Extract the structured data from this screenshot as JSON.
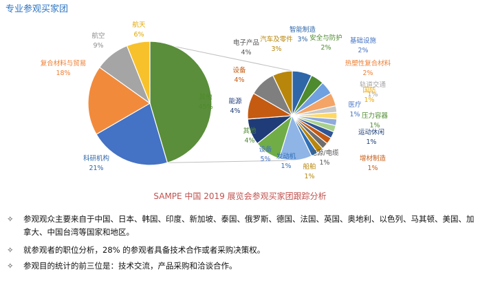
{
  "heading": "专业参观买家团",
  "chart_data": [
    {
      "type": "pie",
      "title": "SAMPE 中国 2019 展览会参观买家团跟踪分析",
      "slices": [
        {
          "label": "其他",
          "value": 45,
          "value_label": "45%",
          "color": "#5a8e3a"
        },
        {
          "label": "科研机构",
          "value": 21,
          "value_label": "21%",
          "color": "#4472c4"
        },
        {
          "label": "复合材料与贸易",
          "value": 18,
          "value_label": "18%",
          "color": "#f28a3c"
        },
        {
          "label": "航空",
          "value": 9,
          "value_label": "9%",
          "color": "#a5a5a5"
        },
        {
          "label": "航天",
          "value": 6,
          "value_label": "6%",
          "color": "#f7c12b"
        }
      ]
    },
    {
      "type": "pie",
      "title": "",
      "slices": [
        {
          "label": "智能制造",
          "value": 3,
          "value_label": "3%",
          "color": "#2e66a8",
          "label_color": "#2e66a8"
        },
        {
          "label": "安全与防护",
          "value": 2,
          "value_label": "2%",
          "color": "#4e8a2e",
          "label_color": "#4e8a2e"
        },
        {
          "label": "基础设施",
          "value": 2,
          "value_label": "2%",
          "color": "#6fa0e0",
          "label_color": "#4472c4"
        },
        {
          "label": "热塑性复合材料",
          "value": 2,
          "value_label": "2%",
          "color": "#f4a466",
          "label_color": "#ed7d31"
        },
        {
          "label": "轨道交通",
          "value": 1,
          "value_label": "1%",
          "color": "#c8c8c8",
          "label_color": "#a5a5a5"
        },
        {
          "label": "国防",
          "value": 1,
          "value_label": "1%",
          "color": "#ffd966",
          "label_color": "#f0a800"
        },
        {
          "label": "医疗",
          "value": 1,
          "value_label": "1%",
          "color": "#8faadc",
          "label_color": "#4472c4"
        },
        {
          "label": "压力容器",
          "value": 1,
          "value_label": "1%",
          "color": "#a9d18e",
          "label_color": "#4e8a2e"
        },
        {
          "label": "运动休闲",
          "value": 1,
          "value_label": "1%",
          "color": "#2f5597",
          "label_color": "#1f3f7a"
        },
        {
          "label": "增材制造",
          "value": 1,
          "value_label": "1%",
          "color": "#c55a11",
          "label_color": "#c55a11"
        },
        {
          "label": "电源/电缆",
          "value": 1,
          "value_label": "1%",
          "color": "#6e6e6e",
          "label_color": "#555555"
        },
        {
          "label": "船舶",
          "value": 1,
          "value_label": "1%",
          "color": "#b8860b",
          "label_color": "#b8860b"
        },
        {
          "label": "发动机",
          "value": 1,
          "value_label": "1%",
          "color": "#2f6fb6",
          "label_color": "#2f6fb6"
        },
        {
          "label": "设备",
          "value": 5,
          "value_label": "5%",
          "color": "#8fb4e6",
          "label_color": "#4472c4"
        },
        {
          "label": "其他",
          "value": 4,
          "value_label": "4%",
          "color": "#70ad47",
          "label_color": "#4e8a2e"
        },
        {
          "label": "能源",
          "value": 4,
          "value_label": "4%",
          "color": "#1f3c78",
          "label_color": "#1f3c78"
        },
        {
          "label": "设备",
          "value": 4,
          "value_label": "4%",
          "color": "#c55a11",
          "label_color": "#c55a11"
        },
        {
          "label": "电子产品",
          "value": 4,
          "value_label": "4%",
          "color": "#7f7f7f",
          "label_color": "#555555"
        },
        {
          "label": "汽车及零件",
          "value": 3,
          "value_label": "3%",
          "color": "#b8860b",
          "label_color": "#b8860b"
        }
      ]
    }
  ],
  "bullets": [
    {
      "mark": "✧",
      "text": "参观观众主要来自于中国、日本、韩国、印度、新加坡、泰国、俄罗斯、德国、法国、英国、奥地利、以色列、马其顿、美国、加拿大、中国台湾等国家和地区。"
    },
    {
      "mark": "✧",
      "text": "就参观者的职位分析，28% 的参观者具备技术合作或者采购决策权。"
    },
    {
      "mark": "✧",
      "text": "参观目的统计的前三位是：技术交流，产品采购和洽谈合作。"
    }
  ]
}
